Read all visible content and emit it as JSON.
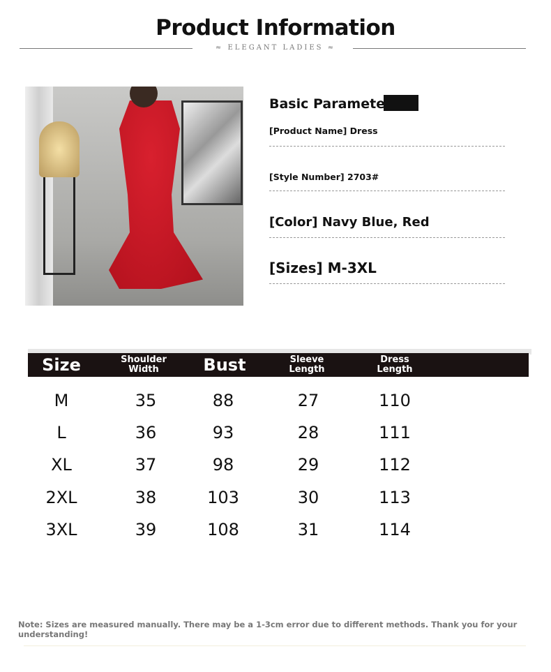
{
  "header": {
    "title": "Product Information",
    "subtitle": "ELEGANT LADIES"
  },
  "params": {
    "heading": "Basic Parameters",
    "items": [
      {
        "text": "[Product Name] Dress"
      },
      {
        "text": "[Style Number] 2703#"
      },
      {
        "text": "[Color] Navy Blue, Red"
      },
      {
        "text": "[Sizes] M-3XL"
      }
    ]
  },
  "size_table": {
    "headers": [
      "Size",
      "Shoulder Width",
      "Bust",
      "Sleeve Length",
      "Dress Length"
    ],
    "rows": [
      [
        "M",
        "35",
        "88",
        "27",
        "110"
      ],
      [
        "L",
        "36",
        "93",
        "28",
        "111"
      ],
      [
        "XL",
        "37",
        "98",
        "29",
        "112"
      ],
      [
        "2XL",
        "38",
        "103",
        "30",
        "113"
      ],
      [
        "3XL",
        "39",
        "108",
        "31",
        "114"
      ]
    ]
  },
  "note": "Note: Sizes are measured manually. There may be a 1-3cm error due to different methods. Thank you for your understanding!",
  "colors": {
    "dress": "#c8151f",
    "header_bar": "#1a1212"
  }
}
